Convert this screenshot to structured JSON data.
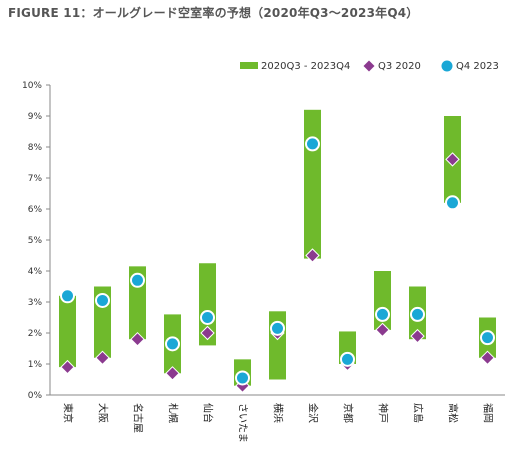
{
  "figure": {
    "title": "FIGURE 11：オールグレード空室率の予想（2020年Q3～2023年Q4）"
  },
  "colors": {
    "range_bar": "#6fba2c",
    "q3_2020": "#8b3a8f",
    "q4_2023": "#1aa7d6",
    "axis": "#888888"
  },
  "chart_data": {
    "type": "bar",
    "title": "",
    "xlabel": "",
    "ylabel": "",
    "ylim": [
      0,
      10
    ],
    "ytick_labels": [
      "0%",
      "1%",
      "2%",
      "3%",
      "4%",
      "5%",
      "6%",
      "7%",
      "8%",
      "9%",
      "10%"
    ],
    "grid": false,
    "legend_position": "top-right",
    "categories": [
      "東京",
      "大阪",
      "名古屋",
      "札幌",
      "仙台",
      "さいたま",
      "横浜",
      "金沢",
      "京都",
      "神戸",
      "広島",
      "高松",
      "福岡"
    ],
    "series": [
      {
        "name": "2020Q3 - 2023Q4",
        "kind": "range",
        "low": [
          0.9,
          1.2,
          1.8,
          0.7,
          1.6,
          0.3,
          0.5,
          4.4,
          1.0,
          2.1,
          1.8,
          6.2,
          1.2
        ],
        "high": [
          3.2,
          3.5,
          4.15,
          2.6,
          4.25,
          1.15,
          2.7,
          9.2,
          2.05,
          4.0,
          3.5,
          9.0,
          2.5
        ]
      },
      {
        "name": "Q3 2020",
        "kind": "point",
        "marker": "diamond",
        "values": [
          0.9,
          1.2,
          1.8,
          0.7,
          2.0,
          0.3,
          2.0,
          4.5,
          1.0,
          2.1,
          1.9,
          7.6,
          1.2
        ]
      },
      {
        "name": "Q4 2023",
        "kind": "point",
        "marker": "circle",
        "values": [
          3.2,
          3.05,
          3.7,
          1.65,
          2.5,
          0.55,
          2.15,
          8.1,
          1.15,
          2.6,
          2.6,
          6.2,
          1.85
        ]
      }
    ]
  }
}
